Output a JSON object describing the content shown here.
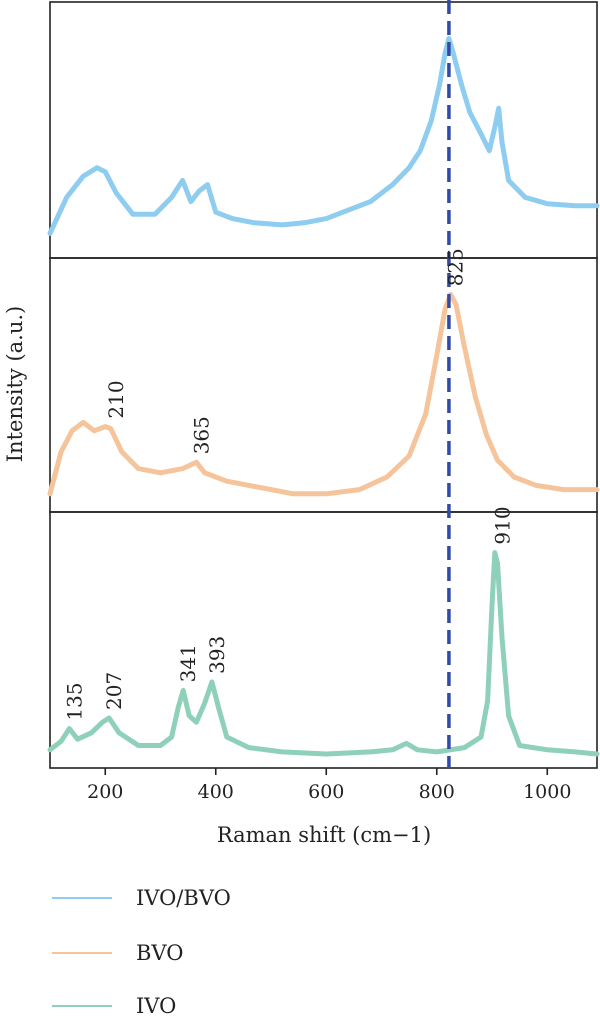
{
  "chart_data": {
    "type": "line",
    "xlabel": "Raman shift (cm−1)",
    "ylabel": "Intensity (a.u.)",
    "xlim": [
      100,
      1090
    ],
    "x_ticks": [
      200,
      400,
      600,
      800,
      1000
    ],
    "x_tick_labels": [
      "200",
      "400",
      "600",
      "800",
      "1000"
    ],
    "reference_line": {
      "x": 822,
      "style": "dashed",
      "color": "#2f4aa8"
    },
    "legend": {
      "placement": "below-plot",
      "orientation": "vertical"
    },
    "series": [
      {
        "name": "IVO/BVO",
        "color": "#8ecdf0",
        "panel": 0,
        "x": [
          100,
          130,
          160,
          185,
          200,
          220,
          250,
          290,
          320,
          340,
          355,
          370,
          385,
          400,
          430,
          470,
          520,
          560,
          600,
          640,
          680,
          720,
          750,
          770,
          790,
          805,
          815,
          822,
          830,
          845,
          860,
          880,
          895,
          905,
          912,
          918,
          930,
          960,
          1000,
          1050,
          1090
        ],
        "y": [
          0.05,
          0.22,
          0.32,
          0.36,
          0.34,
          0.24,
          0.14,
          0.14,
          0.22,
          0.3,
          0.2,
          0.25,
          0.28,
          0.15,
          0.12,
          0.1,
          0.09,
          0.1,
          0.12,
          0.16,
          0.2,
          0.28,
          0.36,
          0.44,
          0.58,
          0.75,
          0.9,
          0.97,
          0.9,
          0.75,
          0.62,
          0.52,
          0.44,
          0.55,
          0.64,
          0.48,
          0.3,
          0.22,
          0.19,
          0.18,
          0.18
        ],
        "peak_labels": []
      },
      {
        "name": "BVO",
        "color": "#f6c49a",
        "panel": 1,
        "x": [
          100,
          120,
          140,
          160,
          180,
          200,
          210,
          230,
          260,
          300,
          340,
          365,
          380,
          420,
          480,
          540,
          600,
          660,
          710,
          750,
          780,
          800,
          815,
          825,
          835,
          850,
          870,
          890,
          910,
          940,
          980,
          1030,
          1090
        ],
        "y": [
          0.02,
          0.22,
          0.32,
          0.36,
          0.32,
          0.34,
          0.33,
          0.22,
          0.14,
          0.12,
          0.14,
          0.17,
          0.12,
          0.08,
          0.05,
          0.02,
          0.02,
          0.04,
          0.1,
          0.2,
          0.4,
          0.68,
          0.9,
          0.97,
          0.92,
          0.72,
          0.48,
          0.3,
          0.18,
          0.1,
          0.06,
          0.04,
          0.04
        ],
        "peak_labels": [
          {
            "x": 210,
            "text": "210"
          },
          {
            "x": 365,
            "text": "365"
          },
          {
            "x": 825,
            "text": "825"
          }
        ]
      },
      {
        "name": "IVO",
        "color": "#8fd1b8",
        "panel": 2,
        "x": [
          100,
          120,
          135,
          150,
          175,
          195,
          207,
          225,
          260,
          300,
          320,
          332,
          341,
          352,
          365,
          380,
          393,
          405,
          420,
          460,
          520,
          600,
          680,
          720,
          745,
          765,
          800,
          850,
          880,
          892,
          900,
          905,
          910,
          918,
          930,
          950,
          1000,
          1050,
          1090
        ],
        "y": [
          0.02,
          0.06,
          0.12,
          0.07,
          0.1,
          0.15,
          0.17,
          0.1,
          0.04,
          0.04,
          0.08,
          0.22,
          0.3,
          0.18,
          0.15,
          0.24,
          0.34,
          0.22,
          0.08,
          0.03,
          0.01,
          0.0,
          0.01,
          0.02,
          0.05,
          0.02,
          0.01,
          0.03,
          0.08,
          0.25,
          0.7,
          0.95,
          0.9,
          0.55,
          0.18,
          0.04,
          0.02,
          0.01,
          0.0
        ],
        "peak_labels": [
          {
            "x": 135,
            "text": "135"
          },
          {
            "x": 207,
            "text": "207"
          },
          {
            "x": 341,
            "text": "341"
          },
          {
            "x": 393,
            "text": "393"
          },
          {
            "x": 910,
            "text": "910"
          }
        ]
      }
    ]
  }
}
